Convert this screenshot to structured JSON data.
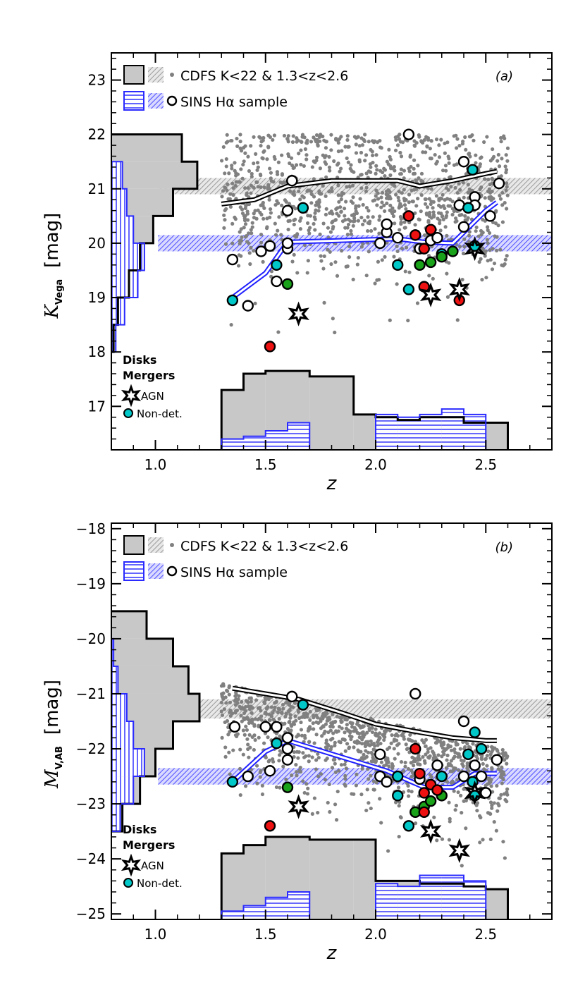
{
  "figure": {
    "panel_a_tag": "(a)",
    "panel_b_tag": "(b)"
  },
  "chart_data": [
    {
      "type": "scatter",
      "panel": "(a)",
      "title": "",
      "xlabel": "z",
      "ylabel_main": "K",
      "ylabel_sub": "Vega",
      "ylabel_unit": "[mag]",
      "xlim": [
        0.8,
        2.8
      ],
      "ylim": [
        16.2,
        23.5
      ],
      "xticks": [
        1.0,
        1.5,
        2.0,
        2.5
      ],
      "xtick_labels": [
        "1.0",
        "1.5",
        "2.0",
        "2.5"
      ],
      "yticks": [
        17,
        18,
        19,
        20,
        21,
        22,
        23
      ],
      "ytick_labels": [
        "17",
        "18",
        "19",
        "20",
        "21",
        "22",
        "23"
      ],
      "legend": [
        {
          "text": "CDFS K<22 & 1.3<z<2.6",
          "style": "gray"
        },
        {
          "text": "SINS Hα sample",
          "style": "blue"
        }
      ],
      "class_legend": {
        "disks": "Disks",
        "mergers": "Mergers",
        "agn": "AGN",
        "nondet": "Non-det."
      },
      "bands": [
        {
          "name": "cdfs-median",
          "y": [
            20.9,
            21.2
          ],
          "color": "gray"
        },
        {
          "name": "sins-median",
          "y": [
            19.85,
            20.15
          ],
          "color": "blue"
        }
      ],
      "cdfs_median_line": {
        "x": [
          1.3,
          1.45,
          1.6,
          1.8,
          2.0,
          2.1,
          2.2,
          2.35,
          2.5,
          2.55
        ],
        "y": [
          20.72,
          20.8,
          21.05,
          21.15,
          21.15,
          21.15,
          21.05,
          21.15,
          21.28,
          21.32
        ]
      },
      "sins_median_line": {
        "x": [
          1.35,
          1.5,
          1.6,
          2.1,
          2.22,
          2.35,
          2.5,
          2.55
        ],
        "y": [
          19.0,
          19.45,
          20.02,
          20.08,
          20.02,
          20.0,
          20.6,
          20.75
        ]
      },
      "histogram_x": {
        "edges": [
          1.3,
          1.4,
          1.5,
          1.6,
          1.7,
          1.8,
          1.9,
          2.0,
          2.1,
          2.2,
          2.3,
          2.4,
          2.5,
          2.6
        ],
        "cdfs_y": [
          17.3,
          17.6,
          17.65,
          17.65,
          17.55,
          17.55,
          16.85,
          16.8,
          16.75,
          16.8,
          16.8,
          16.7,
          16.7
        ],
        "sins_y": [
          16.4,
          16.45,
          16.55,
          16.7,
          16.2,
          16.2,
          16.2,
          16.85,
          16.8,
          16.85,
          16.95,
          16.85,
          16.2
        ]
      },
      "histogram_y": {
        "edges": [
          18.0,
          18.5,
          19.0,
          19.5,
          20.0,
          20.5,
          21.0,
          21.5,
          22.0
        ],
        "cdfs_x": [
          0.81,
          0.83,
          0.88,
          0.93,
          0.99,
          1.08,
          1.19,
          1.12
        ],
        "sins_x": [
          0.82,
          0.86,
          0.92,
          0.95,
          0.9,
          0.87,
          0.85,
          0.8
        ]
      },
      "points": {
        "white": [
          [
            1.35,
            19.7
          ],
          [
            1.42,
            18.85
          ],
          [
            1.48,
            19.85
          ],
          [
            1.52,
            19.95
          ],
          [
            1.55,
            19.3
          ],
          [
            1.6,
            19.9
          ],
          [
            1.6,
            20.0
          ],
          [
            1.6,
            20.6
          ],
          [
            1.62,
            21.15
          ],
          [
            2.02,
            20.0
          ],
          [
            2.05,
            20.2
          ],
          [
            2.05,
            20.35
          ],
          [
            2.1,
            20.1
          ],
          [
            2.15,
            22.0
          ],
          [
            2.2,
            19.9
          ],
          [
            2.25,
            20.05
          ],
          [
            2.28,
            20.1
          ],
          [
            2.38,
            20.7
          ],
          [
            2.4,
            20.3
          ],
          [
            2.4,
            21.5
          ],
          [
            2.45,
            20.85
          ],
          [
            2.45,
            20.7
          ],
          [
            2.52,
            20.5
          ],
          [
            2.56,
            21.1
          ]
        ],
        "cyan": [
          [
            1.35,
            18.95
          ],
          [
            1.55,
            19.6
          ],
          [
            1.67,
            20.65
          ],
          [
            2.1,
            19.6
          ],
          [
            2.15,
            19.15
          ],
          [
            2.3,
            19.8
          ],
          [
            2.42,
            20.65
          ],
          [
            2.44,
            21.35
          ],
          [
            2.45,
            19.95
          ]
        ],
        "green": [
          [
            1.6,
            19.25
          ],
          [
            2.2,
            19.6
          ],
          [
            2.25,
            19.65
          ],
          [
            2.3,
            19.75
          ],
          [
            2.35,
            19.85
          ]
        ],
        "red": [
          [
            1.52,
            18.1
          ],
          [
            2.15,
            20.5
          ],
          [
            2.18,
            20.15
          ],
          [
            2.22,
            19.2
          ],
          [
            2.25,
            20.25
          ],
          [
            2.22,
            19.9
          ],
          [
            2.38,
            18.95
          ]
        ],
        "agn": [
          [
            1.65,
            18.7
          ],
          [
            2.25,
            19.05
          ],
          [
            2.38,
            19.15
          ],
          [
            2.45,
            19.9
          ]
        ]
      }
    },
    {
      "type": "scatter",
      "panel": "(b)",
      "title": "",
      "xlabel": "z",
      "ylabel_main": "M",
      "ylabel_sub": "V,AB",
      "ylabel_unit": "[mag]",
      "xlim": [
        0.8,
        2.8
      ],
      "ylim": [
        -25.1,
        -17.9
      ],
      "xticks": [
        1.0,
        1.5,
        2.0,
        2.5
      ],
      "xtick_labels": [
        "1.0",
        "1.5",
        "2.0",
        "2.5"
      ],
      "yticks": [
        -25,
        -24,
        -23,
        -22,
        -21,
        -20,
        -19,
        -18
      ],
      "ytick_labels": [
        "−25",
        "−24",
        "−23",
        "−22",
        "−21",
        "−20",
        "−19",
        "−18"
      ],
      "legend": [
        {
          "text": "CDFS K<22 & 1.3<z<2.6",
          "style": "gray"
        },
        {
          "text": "SINS Hα sample",
          "style": "blue"
        }
      ],
      "class_legend": {
        "disks": "Disks",
        "mergers": "Mergers",
        "agn": "AGN",
        "nondet": "Non-det."
      },
      "bands": [
        {
          "name": "cdfs-median",
          "y": [
            -21.45,
            -21.1
          ],
          "color": "gray"
        },
        {
          "name": "sins-median",
          "y": [
            -22.65,
            -22.35
          ],
          "color": "blue"
        }
      ],
      "cdfs_median_line": {
        "x": [
          1.35,
          1.5,
          1.65,
          1.85,
          2.0,
          2.2,
          2.35,
          2.5,
          2.55
        ],
        "y": [
          -20.9,
          -21.0,
          -21.1,
          -21.35,
          -21.55,
          -21.7,
          -21.8,
          -21.85,
          -21.85
        ]
      },
      "sins_median_line": {
        "x": [
          1.35,
          1.5,
          1.6,
          2.05,
          2.22,
          2.35,
          2.45,
          2.55
        ],
        "y": [
          -22.6,
          -22.05,
          -21.85,
          -22.4,
          -22.7,
          -22.7,
          -22.45,
          -22.45
        ]
      },
      "histogram_x": {
        "edges": [
          1.3,
          1.4,
          1.5,
          1.6,
          1.7,
          1.8,
          1.9,
          2.0,
          2.1,
          2.2,
          2.3,
          2.4,
          2.5,
          2.6
        ],
        "cdfs_y": [
          -23.9,
          -23.75,
          -23.6,
          -23.6,
          -23.65,
          -23.65,
          -23.65,
          -24.4,
          -24.4,
          -24.45,
          -24.45,
          -24.5,
          -24.55
        ],
        "sins_y": [
          -24.95,
          -24.85,
          -24.7,
          -24.6,
          -25.1,
          -25.1,
          -25.1,
          -24.45,
          -24.5,
          -24.3,
          -24.3,
          -24.4,
          -25.1
        ]
      },
      "histogram_y": {
        "edges": [
          -23.5,
          -23.0,
          -22.5,
          -22.0,
          -21.5,
          -21.0,
          -20.5,
          -20.0,
          -19.5
        ],
        "cdfs_x": [
          0.85,
          0.93,
          1.0,
          1.08,
          1.2,
          1.15,
          1.08,
          0.96
        ],
        "sins_x": [
          0.84,
          0.9,
          0.95,
          0.9,
          0.87,
          0.83,
          0.81,
          0.8
        ]
      },
      "points": {
        "white": [
          [
            1.36,
            -21.6
          ],
          [
            1.42,
            -22.5
          ],
          [
            1.5,
            -21.6
          ],
          [
            1.52,
            -22.4
          ],
          [
            1.55,
            -21.6
          ],
          [
            1.6,
            -21.8
          ],
          [
            1.6,
            -22.0
          ],
          [
            1.62,
            -21.05
          ],
          [
            1.6,
            -22.2
          ],
          [
            2.02,
            -22.1
          ],
          [
            2.02,
            -22.5
          ],
          [
            2.05,
            -22.6
          ],
          [
            2.18,
            -21.0
          ],
          [
            2.2,
            -22.55
          ],
          [
            2.28,
            -22.3
          ],
          [
            2.4,
            -21.5
          ],
          [
            2.4,
            -22.5
          ],
          [
            2.45,
            -22.3
          ],
          [
            2.48,
            -22.5
          ],
          [
            2.5,
            -22.8
          ],
          [
            2.55,
            -22.2
          ]
        ],
        "cyan": [
          [
            1.35,
            -22.6
          ],
          [
            1.55,
            -21.9
          ],
          [
            1.67,
            -21.2
          ],
          [
            2.1,
            -22.5
          ],
          [
            2.1,
            -22.85
          ],
          [
            2.15,
            -23.4
          ],
          [
            2.3,
            -22.5
          ],
          [
            2.42,
            -22.1
          ],
          [
            2.44,
            -22.6
          ],
          [
            2.45,
            -22.85
          ],
          [
            2.45,
            -21.7
          ],
          [
            2.48,
            -22.0
          ]
        ],
        "green": [
          [
            1.6,
            -22.7
          ],
          [
            2.18,
            -23.15
          ],
          [
            2.22,
            -23.05
          ],
          [
            2.25,
            -22.95
          ],
          [
            2.3,
            -22.85
          ]
        ],
        "red": [
          [
            1.52,
            -23.4
          ],
          [
            2.18,
            -22.0
          ],
          [
            2.2,
            -22.45
          ],
          [
            2.22,
            -22.8
          ],
          [
            2.25,
            -22.65
          ],
          [
            2.28,
            -22.75
          ],
          [
            2.22,
            -23.15
          ]
        ],
        "agn": [
          [
            1.65,
            -23.05
          ],
          [
            2.25,
            -23.5
          ],
          [
            2.38,
            -23.85
          ],
          [
            2.45,
            -22.8
          ]
        ]
      }
    }
  ]
}
